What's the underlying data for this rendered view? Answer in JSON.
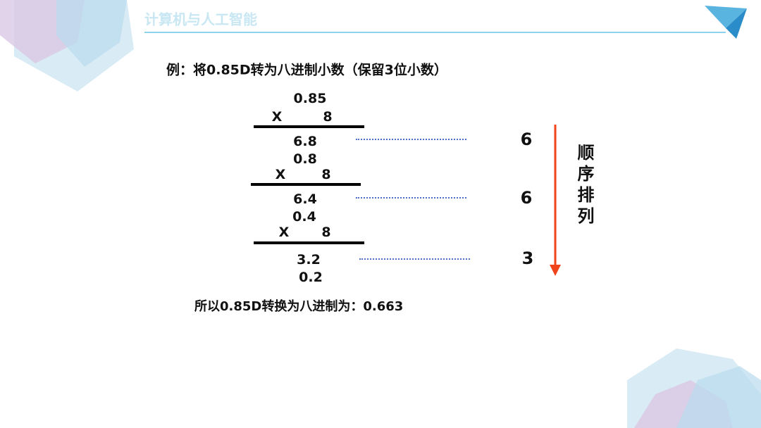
{
  "header": {
    "title": "计算机与人工智能"
  },
  "example": {
    "title": "例：将0.85D转为八进制小数（保留3位小数）"
  },
  "steps": [
    {
      "multiplicand": "0.85",
      "op": "X",
      "multiplier": "8",
      "product": "6.8",
      "digit": "6"
    },
    {
      "multiplicand": "0.8",
      "op": "X",
      "multiplier": "8",
      "product": "6.4",
      "digit": "6"
    },
    {
      "multiplicand": "0.4",
      "op": "X",
      "multiplier": "8",
      "product": "3.2",
      "digit": "3"
    }
  ],
  "remainder": "0.2",
  "order_label": "顺序排列",
  "conclusion": "所以0.85D转换为八进制为：0.663"
}
